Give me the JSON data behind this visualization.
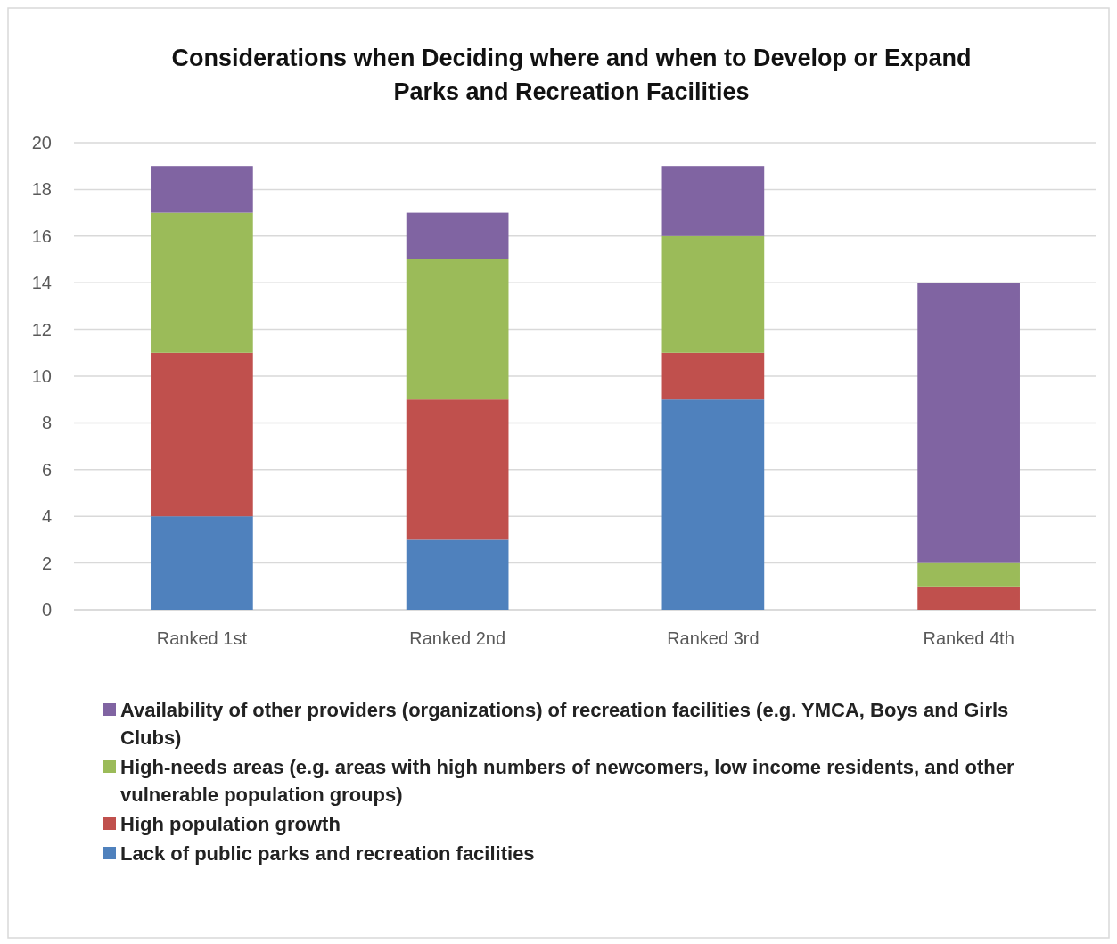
{
  "chart_data": {
    "type": "bar",
    "title": "Considerations when Deciding where and when to Develop or Expand Parks and Recreation Facilities",
    "categories": [
      "Ranked 1st",
      "Ranked 2nd",
      "Ranked 3rd",
      "Ranked 4th"
    ],
    "stacked": true,
    "series": [
      {
        "name": "Lack of public parks and recreation facilities",
        "color": "#4f81bd",
        "values": [
          4,
          3,
          9,
          0
        ]
      },
      {
        "name": "High population growth",
        "color": "#c0504d",
        "values": [
          7,
          6,
          2,
          1
        ]
      },
      {
        "name": "High-needs areas (e.g. areas with high numbers of newcomers, low income residents, and other vulnerable population groups)",
        "color": "#9bbb59",
        "values": [
          6,
          6,
          5,
          1
        ]
      },
      {
        "name": "Availability of other providers (organizations) of recreation facilities (e.g. YMCA, Boys and Girls Clubs)",
        "color": "#8064a2",
        "values": [
          2,
          2,
          3,
          12
        ]
      }
    ],
    "ylim": [
      0,
      20
    ],
    "yticks": [
      0,
      2,
      4,
      6,
      8,
      10,
      12,
      14,
      16,
      18,
      20
    ],
    "grid": "y",
    "legend": "bottom"
  }
}
